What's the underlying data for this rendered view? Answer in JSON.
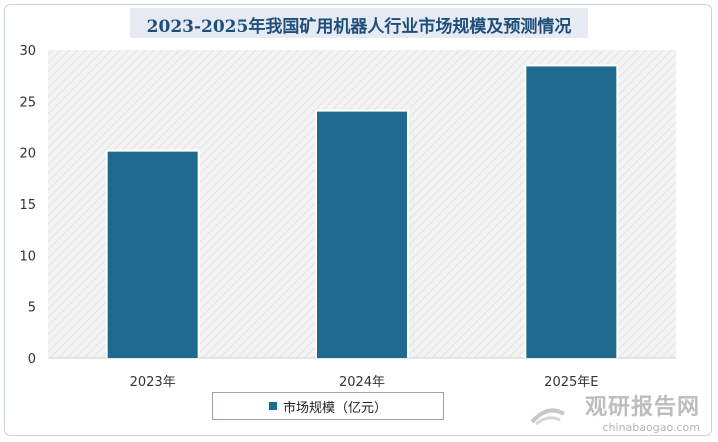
{
  "chart_data": {
    "type": "bar",
    "title": "2023-2025年我国矿用机器人行业市场规模及预测情况",
    "categories": [
      "2023年",
      "2024年",
      "2025年E"
    ],
    "series": [
      {
        "name": "市场规模（亿元）",
        "values": [
          20.1,
          24.0,
          28.4
        ]
      }
    ],
    "ylim": [
      0,
      30
    ],
    "yticks": [
      0,
      5,
      10,
      15,
      20,
      25,
      30
    ],
    "grid": false,
    "legend_position": "bottom",
    "colors": {
      "bar": "#1f6b8f",
      "plot_background": "#f4f4f4",
      "title": "#1f4e79"
    }
  },
  "watermark": {
    "cn": "观研报告网",
    "en": "chinabaogao.com"
  }
}
